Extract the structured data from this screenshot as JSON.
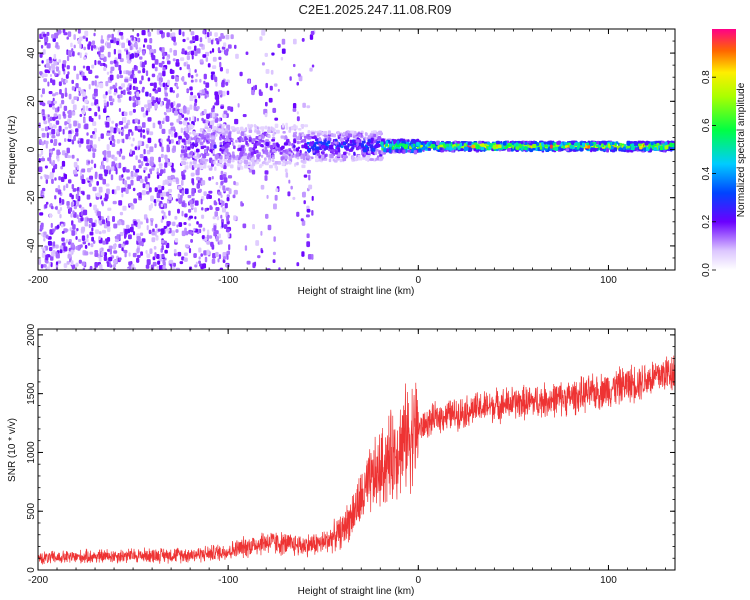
{
  "title": "C2E1.2025.247.11.08.R09",
  "chart_data": [
    {
      "type": "heatmap",
      "xlabel": "Height of straight line (km)",
      "ylabel": "Frequency (Hz)",
      "xlim": [
        -200,
        135
      ],
      "ylim": [
        -50,
        50
      ],
      "xticks": [
        -200,
        -100,
        0,
        100
      ],
      "xtick_labels": [
        "-200",
        "-100",
        "0",
        "100"
      ],
      "yticks": [
        -40,
        -20,
        0,
        20,
        40
      ],
      "ytick_labels": [
        "-40",
        "-20",
        "0",
        "20",
        "40"
      ],
      "colorbar": {
        "label": "Normalized spectral amplitude",
        "range": [
          0,
          1
        ],
        "ticks": [
          0.0,
          0.2,
          0.4,
          0.6,
          0.8
        ],
        "tick_labels": [
          "0.0",
          "0.2",
          "0.4",
          "0.6",
          "0.8"
        ]
      },
      "description_points": {
        "signal_band_center_hz": 1.5,
        "signal_onset_km": -40,
        "strong_band_from_km": -20
      }
    },
    {
      "type": "line",
      "xlabel": "Height of straight line (km)",
      "ylabel": "SNR (10 * v/v)",
      "xlim": [
        -200,
        135
      ],
      "ylim": [
        0,
        2050
      ],
      "xticks": [
        -200,
        -100,
        0,
        100
      ],
      "xtick_labels": [
        "-200",
        "-100",
        "0",
        "100"
      ],
      "yticks": [
        0,
        500,
        1000,
        1500,
        2000
      ],
      "ytick_labels": [
        "0",
        "500",
        "1000",
        "1500",
        "2000"
      ],
      "series": [
        {
          "name": "SNR",
          "color": "#ee3333",
          "x": [
            -200,
            -180,
            -160,
            -140,
            -120,
            -110,
            -100,
            -90,
            -80,
            -70,
            -60,
            -50,
            -40,
            -30,
            -25,
            -20,
            -15,
            -10,
            -5,
            0,
            5,
            10,
            20,
            30,
            40,
            50,
            60,
            70,
            80,
            90,
            100,
            110,
            120,
            135
          ],
          "y": [
            100,
            110,
            120,
            125,
            130,
            140,
            160,
            200,
            240,
            220,
            210,
            230,
            330,
            600,
            750,
            850,
            950,
            1050,
            1150,
            1200,
            1250,
            1300,
            1330,
            1370,
            1400,
            1420,
            1430,
            1450,
            1470,
            1500,
            1540,
            1580,
            1620,
            1700
          ]
        }
      ]
    }
  ]
}
